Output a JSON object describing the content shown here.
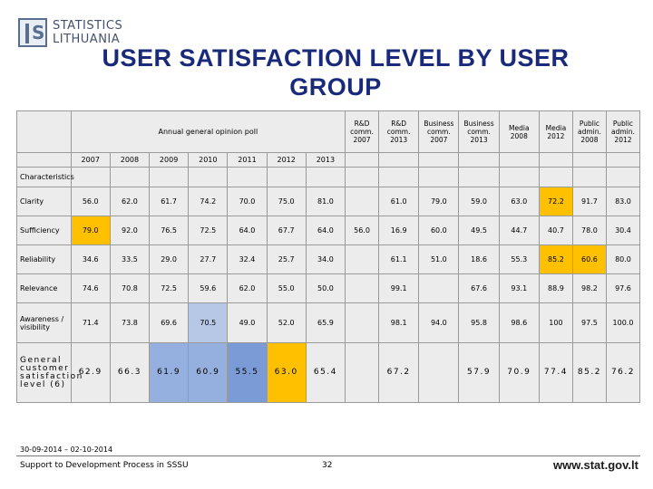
{
  "logo": {
    "line1": "STATISTICS",
    "line2": "LITHUANIA"
  },
  "title": "USER SATISFACTION LEVEL BY USER GROUP",
  "table": {
    "poll_header": "Annual general opinion poll",
    "years": [
      "2007",
      "2008",
      "2009",
      "2010",
      "2011",
      "2012",
      "2013"
    ],
    "group_headers": [
      "R&D comm. 2007",
      "R&D comm. 2013",
      "Business comm. 2007",
      "Business comm. 2013",
      "Media 2008",
      "Media 2012",
      "Public admin. 2008",
      "Public admin. 2012"
    ],
    "characteristics_label": "Characteristics",
    "rows": [
      {
        "label": "Clarity",
        "values": [
          "56.0",
          "62.0",
          "61.7",
          "74.2",
          "70.0",
          "75.0",
          "81.0",
          "",
          "61.0",
          "79.0",
          "59.0",
          "63.0",
          "72.2",
          "91.7",
          "83.0"
        ]
      },
      {
        "label": "Sufficiency",
        "values": [
          "79.0",
          "92.0",
          "76.5",
          "72.5",
          "64.0",
          "67.7",
          "64.0",
          "56.0",
          "16.9",
          "60.0",
          "49.5",
          "44.7",
          "40.7",
          "78.0",
          "30.4"
        ]
      },
      {
        "label": "Reliability",
        "values": [
          "34.6",
          "33.5",
          "29.0",
          "27.7",
          "32.4",
          "25.7",
          "34.0",
          "",
          "61.1",
          "51.0",
          "18.6",
          "55.3",
          "85.2",
          "60.6",
          "80.0"
        ]
      },
      {
        "label": "Relevance",
        "values": [
          "74.6",
          "70.8",
          "72.5",
          "59.6",
          "62.0",
          "55.0",
          "50.0",
          "",
          "99.1",
          "",
          "67.6",
          "93.1",
          "88.9",
          "98.2",
          "97.6"
        ]
      },
      {
        "label": "Awareness / visibility",
        "values": [
          "71.4",
          "73.8",
          "69.6",
          "70.5",
          "49.0",
          "52.0",
          "65.9",
          "",
          "98.1",
          "94.0",
          "95.8",
          "98.6",
          "100",
          "97.5",
          "100.0"
        ]
      },
      {
        "label": "General customer satisfaction level (6)",
        "values": [
          "62.9",
          "66.3",
          "61.9",
          "60.9",
          "55.5",
          "63.0",
          "65.4",
          "",
          "67.2",
          "",
          "57.9",
          "70.9",
          "77.4",
          "85.2",
          "76.2"
        ]
      }
    ]
  },
  "footer": {
    "date": "30-09-2014 – 02-10-2014",
    "left": "Support to Development Process in SSSU",
    "page": "32",
    "url": "www.stat.gov.lt"
  },
  "colors": {
    "title": "#1a2a7a",
    "highlight_yellow": "#ffc000",
    "highlight_blue": "#95afde",
    "cell_bg": "#ececec"
  }
}
